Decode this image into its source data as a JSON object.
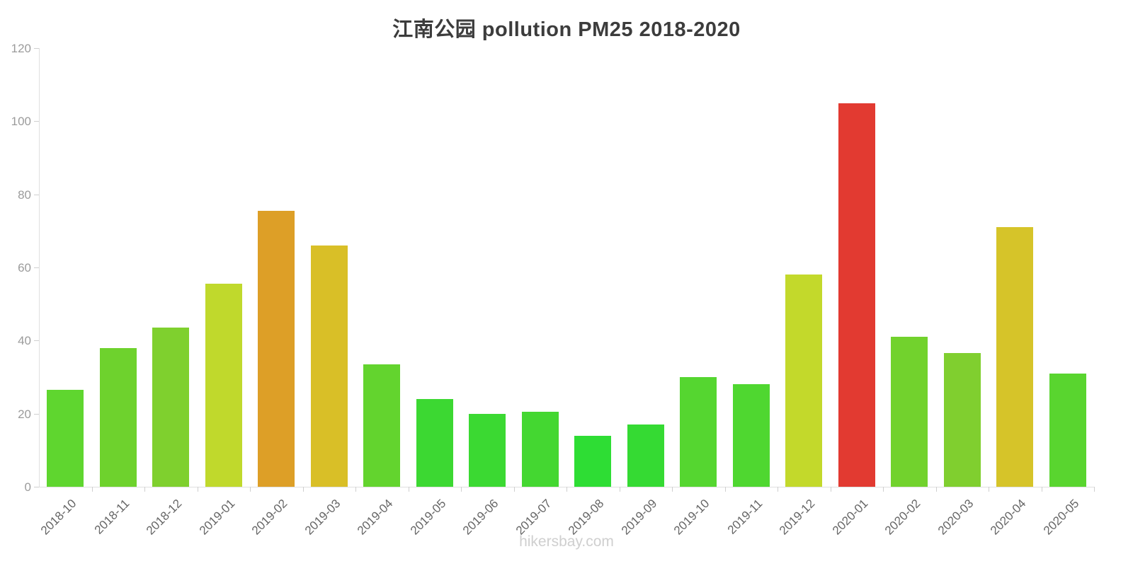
{
  "title": "江南公园 pollution PM25 2018-2020",
  "watermark": "hikersbay.com",
  "chart_data": {
    "type": "bar",
    "title": "江南公园 pollution PM25 2018-2020",
    "xlabel": "",
    "ylabel": "",
    "ylim": [
      0,
      120
    ],
    "yticks": [
      0,
      20,
      40,
      60,
      80,
      100,
      120
    ],
    "grid": false,
    "legend": false,
    "categories": [
      "2018-10",
      "2018-11",
      "2018-12",
      "2019-01",
      "2019-02",
      "2019-03",
      "2019-04",
      "2019-05",
      "2019-06",
      "2019-07",
      "2019-08",
      "2019-09",
      "2019-10",
      "2019-11",
      "2019-12",
      "2020-01",
      "2020-02",
      "2020-03",
      "2020-04",
      "2020-05"
    ],
    "values": [
      26.5,
      38,
      43.5,
      55.5,
      75.5,
      66,
      33.5,
      24,
      20,
      20.5,
      14,
      17,
      30,
      28,
      58,
      105,
      41,
      36.5,
      71,
      31
    ],
    "colors": [
      "#5fd62f",
      "#6ed22d",
      "#7fd02e",
      "#c0d92c",
      "#dd9f27",
      "#d9bf27",
      "#63d42e",
      "#3cd832",
      "#3bd932",
      "#44d731",
      "#2edd34",
      "#35da33",
      "#55d630",
      "#4fd730",
      "#c3d92b",
      "#e23a31",
      "#72d22d",
      "#80cf2f",
      "#d6c429",
      "#59d52f"
    ],
    "axis_line_color": "#e0e0e0",
    "tick_color": "#cfcfcf",
    "y_label_color": "#9b9b9b",
    "x_label_color": "#666666"
  }
}
